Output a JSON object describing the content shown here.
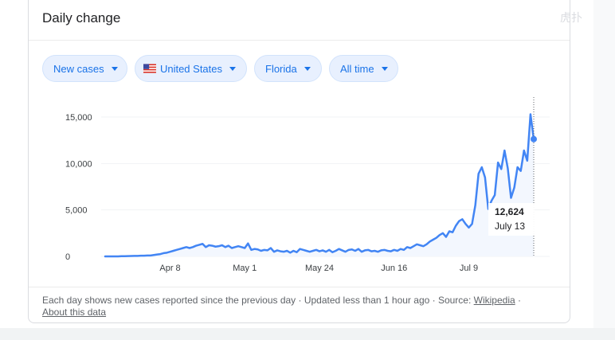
{
  "card": {
    "title": "Daily change",
    "corner_glyph": "虎扑"
  },
  "filters": [
    {
      "label": "New cases",
      "icon": "chevron-down-icon"
    },
    {
      "label": "United States",
      "icon": "us-flag-icon"
    },
    {
      "label": "Florida",
      "icon": "chevron-down-icon"
    },
    {
      "label": "All time",
      "icon": "chevron-down-icon"
    }
  ],
  "tooltip": {
    "value": "12,624",
    "date": "July 13"
  },
  "footer": {
    "text": "Each day shows new cases reported since the previous day · Updated less than 1 hour ago  ·  Source: ",
    "source_link": "Wikipedia",
    "separator": " ·",
    "about_link": "About this data"
  },
  "colors": {
    "line": "#4285f4",
    "area": "#e8f0fe",
    "chip_bg": "#e8f0fe",
    "chip_text": "#1a73e8"
  },
  "chart_data": {
    "type": "area",
    "title": "",
    "xlabel": "",
    "ylabel": "",
    "x_start": "2020-03-01",
    "x_ticks": [
      "Apr 8",
      "May 1",
      "May 24",
      "Jun 16",
      "Jul 9"
    ],
    "y_ticks": [
      "0",
      "5,000",
      "10,000",
      "15,000"
    ],
    "ylim": [
      0,
      16000
    ],
    "grid": true,
    "legend": "none",
    "series": [
      {
        "name": "",
        "values": [
          0,
          0,
          0,
          0,
          0,
          20,
          20,
          30,
          40,
          50,
          50,
          70,
          80,
          100,
          100,
          150,
          200,
          250,
          350,
          400,
          500,
          600,
          700,
          800,
          900,
          1000,
          900,
          1000,
          1150,
          1250,
          1350,
          1000,
          1200,
          1150,
          1050,
          1100,
          1200,
          1000,
          1150,
          900,
          1000,
          1100,
          1000,
          900,
          1400,
          700,
          800,
          750,
          600,
          700,
          650,
          900,
          500,
          650,
          550,
          500,
          600,
          400,
          600,
          450,
          800,
          700,
          600,
          500,
          600,
          700,
          550,
          650,
          500,
          700,
          450,
          600,
          800,
          650,
          500,
          700,
          750,
          600,
          800,
          500,
          650,
          700,
          550,
          600,
          500,
          650,
          700,
          600,
          550,
          700,
          600,
          800,
          700,
          1000,
          900,
          1100,
          1300,
          1200,
          1100,
          1300,
          1600,
          1800,
          2000,
          2300,
          2500,
          2100,
          2700,
          2600,
          3300,
          3800,
          4000,
          3500,
          3100,
          3500,
          5500,
          8900,
          9600,
          8500,
          5100,
          6000,
          6600,
          10100,
          9400,
          11400,
          9500,
          6300,
          7400,
          9600,
          9200,
          11400,
          10300,
          15300,
          12624
        ]
      }
    ]
  }
}
